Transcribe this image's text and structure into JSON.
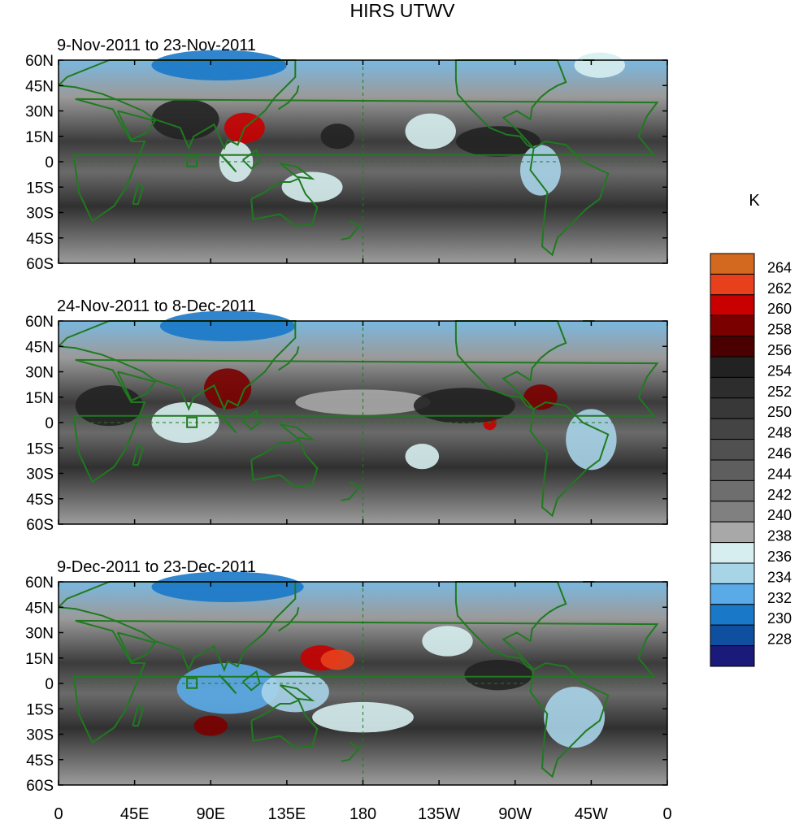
{
  "title": "HIRS UTWV",
  "units": "K",
  "panels": [
    {
      "label": "9-Nov-2011 to 23-Nov-2011"
    },
    {
      "label": "24-Nov-2011 to 8-Dec-2011"
    },
    {
      "label": "9-Dec-2011 to 23-Dec-2011"
    }
  ],
  "lat_labels": [
    "60N",
    "45N",
    "30N",
    "15N",
    "0",
    "15S",
    "30S",
    "45S",
    "60S"
  ],
  "lon_labels": [
    "0",
    "45E",
    "90E",
    "135E",
    "180",
    "135W",
    "90W",
    "45W",
    "0"
  ],
  "colorbar": {
    "labels": [
      "264",
      "262",
      "260",
      "258",
      "256",
      "254",
      "252",
      "250",
      "248",
      "246",
      "244",
      "242",
      "240",
      "238",
      "236",
      "234",
      "232",
      "230",
      "228"
    ],
    "colors": [
      "#d2691e",
      "#e8401c",
      "#c80000",
      "#7a0000",
      "#4a0000",
      "#222222",
      "#2d2d2d",
      "#383838",
      "#444444",
      "#505050",
      "#5e5e5e",
      "#6e6e6e",
      "#808080",
      "#a8a8a8",
      "#d6eef0",
      "#a8d4e8",
      "#5aaae8",
      "#1a78c8",
      "#0f4fa0",
      "#1a1a7a"
    ]
  },
  "colors": {
    "coastline": "#1f7a1f",
    "frame": "#000000"
  }
}
